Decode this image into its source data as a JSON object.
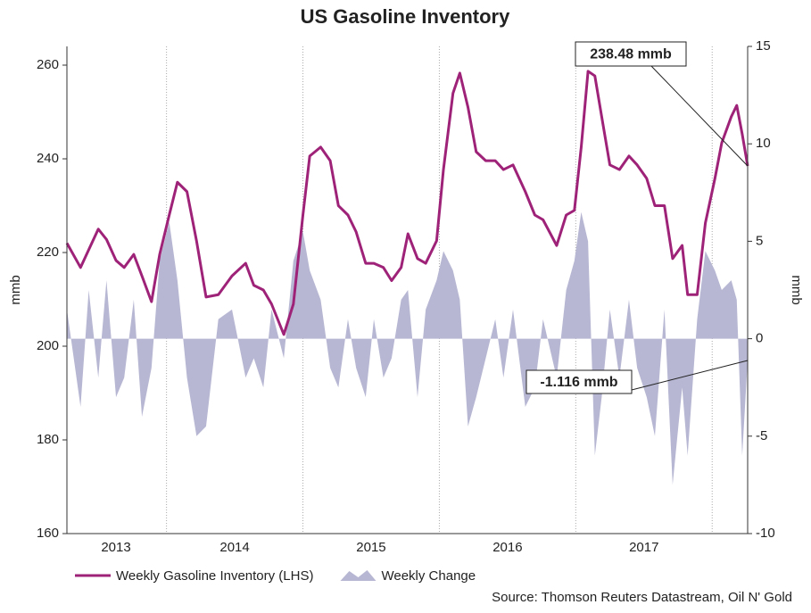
{
  "chart_data": {
    "type": "line",
    "title": "US Gasoline Inventory",
    "y_label": "mmb",
    "y2_label": "mmb",
    "source": "Source: Thomson Reuters Datastream, Oil N' Gold",
    "x": [
      2013.27,
      2013.37,
      2013.43,
      2013.5,
      2013.56,
      2013.63,
      2013.69,
      2013.76,
      2013.82,
      2013.89,
      2013.95,
      2014.02,
      2014.08,
      2014.15,
      2014.22,
      2014.29,
      2014.38,
      2014.48,
      2014.58,
      2014.64,
      2014.71,
      2014.77,
      2014.86,
      2014.93,
      2015.0,
      2015.05,
      2015.13,
      2015.2,
      2015.26,
      2015.33,
      2015.39,
      2015.46,
      2015.52,
      2015.59,
      2015.65,
      2015.72,
      2015.77,
      2015.84,
      2015.9,
      2015.98,
      2016.03,
      2016.1,
      2016.15,
      2016.21,
      2016.27,
      2016.34,
      2016.41,
      2016.47,
      2016.54,
      2016.63,
      2016.7,
      2016.76,
      2016.86,
      2016.93,
      2016.99,
      2017.04,
      2017.09,
      2017.14,
      2017.19,
      2017.25,
      2017.32,
      2017.39,
      2017.45,
      2017.52,
      2017.58,
      2017.65,
      2017.71,
      2017.78,
      2017.82,
      2017.89,
      2017.95,
      2018.02,
      2018.07,
      2018.14,
      2018.18,
      2018.22,
      2018.26
    ],
    "series": [
      {
        "name": "Weekly Gasoline Inventory (LHS)",
        "type": "line",
        "axis": "y",
        "color": "#9e2378",
        "values": [
          222,
          216.8,
          220.6,
          225,
          222.8,
          218.3,
          216.8,
          219.6,
          215,
          209.5,
          219.6,
          228,
          235,
          233,
          222.5,
          210.5,
          211,
          215,
          217.7,
          213,
          212,
          209,
          202.5,
          209,
          228,
          240.6,
          242.5,
          239.6,
          230,
          228,
          224.4,
          217.7,
          217.7,
          216.8,
          214,
          216.8,
          224,
          218.7,
          217.7,
          222.5,
          237.7,
          254,
          258.3,
          251,
          241.5,
          239.6,
          239.6,
          237.7,
          238.7,
          233,
          228,
          227,
          221.5,
          228,
          229,
          242.5,
          258.7,
          257.7,
          249,
          238.7,
          237.7,
          240.6,
          238.7,
          235.8,
          230,
          230,
          218.7,
          221.5,
          211,
          211,
          226.3,
          235.8,
          243.4,
          249,
          251.4,
          245.3,
          238.48
        ]
      },
      {
        "name": "Weekly Change",
        "type": "area",
        "axis": "y2",
        "color": "#b7b7d3",
        "values": [
          1.5,
          -3.5,
          2.5,
          -2,
          3,
          -3,
          -2,
          2,
          -4,
          -1.5,
          4,
          6,
          3,
          -2,
          -5,
          -4.5,
          1,
          1.5,
          -2,
          -1,
          -2.5,
          1.5,
          -1,
          4,
          5.5,
          3.5,
          2,
          -1.5,
          -2.5,
          1,
          -1.5,
          -3,
          1,
          -2,
          -1,
          2,
          2.5,
          -3,
          1.5,
          3,
          4.5,
          3.5,
          2,
          -4.5,
          -3,
          -1,
          1,
          -2,
          1.5,
          -3.5,
          -2.5,
          1,
          -2,
          2.5,
          4,
          6.5,
          5,
          -6,
          -3,
          1.5,
          -2,
          2,
          -1.5,
          -3,
          -5,
          1.5,
          -7.5,
          -2.5,
          -6,
          1,
          4.5,
          3.5,
          2.5,
          3,
          2,
          -6,
          -1.116
        ]
      }
    ],
    "xlim": [
      2013.27,
      2018.26
    ],
    "xticks": [
      {
        "value": 2013.63,
        "label": "2013"
      },
      {
        "value": 2014.5,
        "label": "2014"
      },
      {
        "value": 2015.5,
        "label": "2015"
      },
      {
        "value": 2016.5,
        "label": "2016"
      },
      {
        "value": 2017.5,
        "label": "2017"
      }
    ],
    "xgridlines": [
      2014,
      2015,
      2016,
      2017,
      2018
    ],
    "ylim": [
      160,
      264
    ],
    "yticks": [
      160,
      180,
      200,
      220,
      240,
      260
    ],
    "y2lim": [
      -10,
      15
    ],
    "y2ticks": [
      -10,
      -5,
      0,
      5,
      10,
      15
    ],
    "annotations": [
      {
        "text": "238.48 mmb",
        "series": 0
      },
      {
        "text": "-1.116 mmb",
        "series": 1
      }
    ],
    "legend": "bottom-left"
  }
}
